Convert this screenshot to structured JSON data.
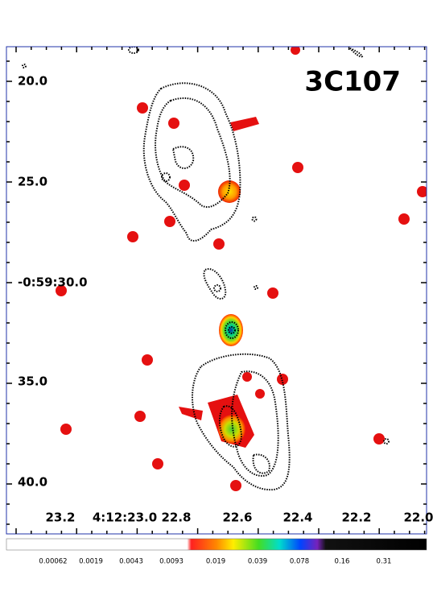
{
  "title": "3C107",
  "y_axis": {
    "labels": [
      "20.0",
      "25.0",
      "-0:59:30.0",
      "35.0",
      "40.0"
    ]
  },
  "x_axis": {
    "labels": [
      "23.2",
      "4:12:23.0",
      "22.8",
      "22.6",
      "22.4",
      "22.2",
      "22.0"
    ]
  },
  "colorbar": {
    "labels": [
      "0.00062",
      "0.0019",
      "0.0043",
      "0.0093",
      "0.019",
      "0.039",
      "0.078",
      "0.16",
      "0.31"
    ]
  }
}
